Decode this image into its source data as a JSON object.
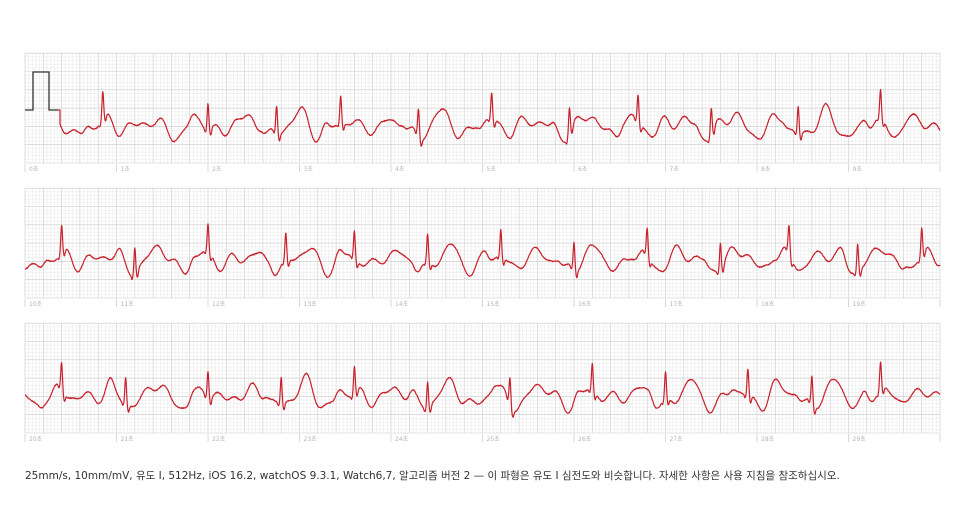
{
  "chart_data": {
    "type": "line",
    "title": "",
    "xlabel": "",
    "ylabel": "",
    "grid": true,
    "colors": {
      "trace": "#c8202b",
      "calibration": "#333333",
      "grid_minor": "#e3e3e3",
      "grid_major": "#c9c9c9",
      "tick_text": "#b5b5b5"
    },
    "strips": [
      {
        "x_range": [
          0,
          10
        ],
        "tick_labels": [
          "0초",
          "1초",
          "2초",
          "3초",
          "4초",
          "5초",
          "6초",
          "7초",
          "8초",
          "9초"
        ],
        "beats_s": [
          0.85,
          2.0,
          2.75,
          3.45,
          4.3,
          5.1,
          5.95,
          6.7,
          7.5,
          8.45,
          9.35
        ]
      },
      {
        "x_range": [
          10,
          20
        ],
        "tick_labels": [
          "10초",
          "11초",
          "12초",
          "13초",
          "14초",
          "15초",
          "16초",
          "17초",
          "18초",
          "19초"
        ],
        "beats_s": [
          10.4,
          11.2,
          12.0,
          12.85,
          13.6,
          14.4,
          15.2,
          16.0,
          16.8,
          17.6,
          18.35,
          19.1,
          19.8
        ]
      },
      {
        "x_range": [
          20,
          30
        ],
        "tick_labels": [
          "20초",
          "21초",
          "22초",
          "23초",
          "24초",
          "25초",
          "26초",
          "27초",
          "28초",
          "29초"
        ],
        "beats_s": [
          20.4,
          21.1,
          22.0,
          22.8,
          23.6,
          24.4,
          25.3,
          26.2,
          27.0,
          27.9,
          28.6,
          29.35
        ]
      }
    ],
    "calibration_pulse_mV": 1
  },
  "footer": {
    "text": "25mm/s, 10mm/mV, 유도 I, 512Hz, iOS 16.2, watchOS 9.3.1, Watch6,7, 알고리즘 버전 2 — 이 파형은 유도 I 심전도와 비슷합니다. 자세한 사항은 사용 지침을 참조하십시오."
  }
}
